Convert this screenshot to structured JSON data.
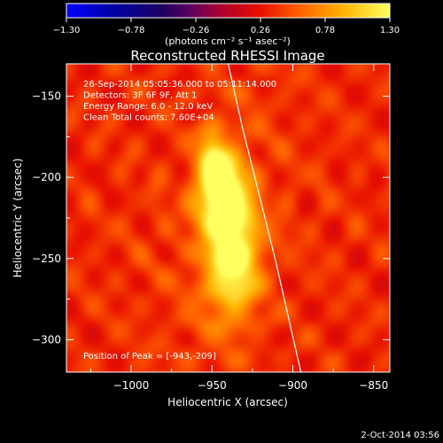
{
  "chart_data": {
    "type": "heatmap",
    "title": "Reconstructed RHESSI Image",
    "xlabel": "Heliocentric X (arcsec)",
    "ylabel": "Heliocentric Y (arcsec)",
    "xlim": [
      -1040,
      -840
    ],
    "ylim": [
      -320,
      -130
    ],
    "x_ticks": [
      -1000,
      -950,
      -900,
      -850
    ],
    "x_tick_labels": [
      "−1000",
      "−950",
      "−900",
      "−850"
    ],
    "y_ticks": [
      -150,
      -200,
      -250,
      -300
    ],
    "y_tick_labels": [
      "−150",
      "−200",
      "−250",
      "−300"
    ],
    "colorbar": {
      "range": [
        -1.3,
        1.3
      ],
      "ticks": [
        -1.3,
        -0.78,
        -0.26,
        0.26,
        0.78,
        1.3
      ],
      "tick_labels": [
        "−1.30",
        "−0.78",
        "−0.26",
        "0.26",
        "0.78",
        "1.30"
      ],
      "label": "(photons cm⁻² s⁻¹ asec⁻²)"
    },
    "annotations": [
      "26-Sep-2014 05:05:36.000 to 05:11:14.000",
      "Detectors: 3F 6F 9F, Att 1",
      "Energy Range: 6.0 - 12.0 keV",
      "Clean    Total counts: 7.60E+04"
    ],
    "peak_label": "Position of Peak = [-943,-209]",
    "peak": [
      -943,
      -209
    ],
    "sources": [
      {
        "x": -945,
        "y": -207,
        "sx": 9,
        "sy": 14,
        "amp": 1.3
      },
      {
        "x": -937,
        "y": -248,
        "sx": 11,
        "sy": 26,
        "amp": 1.05
      },
      {
        "x": -950,
        "y": -183,
        "sx": 6,
        "sy": 10,
        "amp": 0.55
      }
    ],
    "background_level": 0.35,
    "limb_curve": [
      [
        -940,
        -130
      ],
      [
        -931,
        -170
      ],
      [
        -921,
        -210
      ],
      [
        -911,
        -250
      ],
      [
        -903,
        -285
      ],
      [
        -895,
        -320
      ]
    ]
  },
  "footer": {
    "date": "2-Oct-2014 03:56"
  }
}
